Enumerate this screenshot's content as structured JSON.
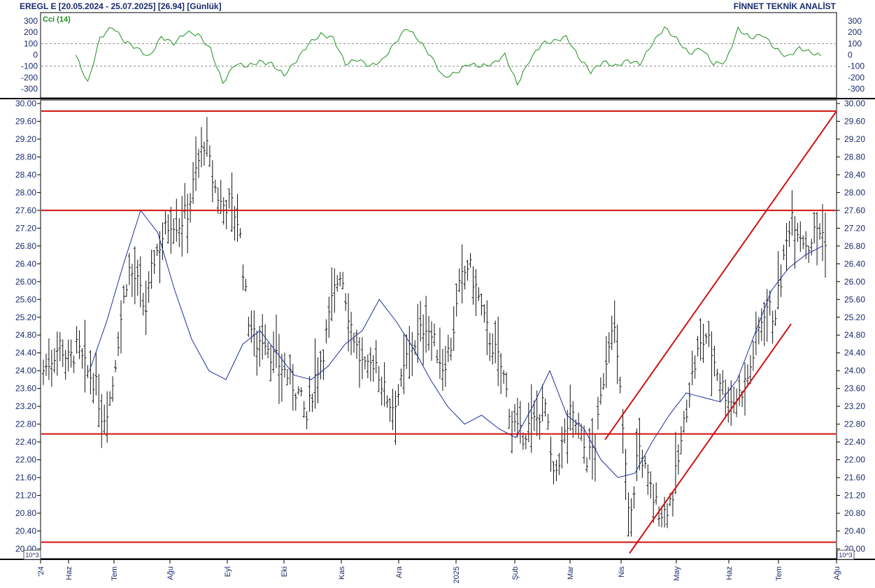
{
  "header": {
    "left": "EREGL E  [20.05.2024 - 25.07.2025]  [26.94]  [Günlük]",
    "right": "FİNNET TEKNİK ANALİST"
  },
  "indicator": {
    "label": "Cci (14)",
    "ticks": [
      "300",
      "200",
      "100",
      "0",
      "-100",
      "-200",
      "-300"
    ],
    "tick_values": [
      300,
      200,
      100,
      0,
      -100,
      -200,
      -300
    ],
    "color": "#1e8f1e"
  },
  "scale_label": "10^3",
  "chart_data": {
    "type": "ohlc",
    "ylim": [
      20.0,
      30.0
    ],
    "y_ticks": [
      "30.00",
      "29.60",
      "29.20",
      "28.80",
      "28.40",
      "28.00",
      "27.60",
      "27.20",
      "26.80",
      "26.40",
      "26.00",
      "25.60",
      "25.20",
      "24.80",
      "24.40",
      "24.00",
      "23.60",
      "23.20",
      "22.80",
      "22.40",
      "22.00",
      "21.60",
      "21.20",
      "20.80",
      "20.40",
      "20.00"
    ],
    "x_ticks": [
      "'24",
      "Haz",
      "Tem",
      "Ağu",
      "Eyl",
      "Eki",
      "Kas",
      "Ara",
      "2025",
      "Şub",
      "Mar",
      "Nis",
      "May",
      "Haz",
      "Tem",
      "Ağu"
    ],
    "close_path": [
      24.0,
      24.3,
      24.6,
      24.2,
      24.5,
      24.0,
      23.8,
      22.9,
      23.5,
      25.0,
      26.3,
      26.0,
      25.3,
      26.5,
      27.0,
      27.4,
      27.3,
      27.6,
      28.5,
      29.2,
      28.2,
      27.7,
      27.8,
      27.3,
      25.3,
      24.6,
      24.8,
      24.3,
      24.1,
      23.8,
      23.5,
      22.9,
      23.9,
      24.5,
      25.6,
      26.3,
      25.2,
      24.4,
      23.9,
      24.3,
      23.6,
      23.2,
      23.6,
      24.5,
      24.7,
      25.1,
      24.6,
      24.1,
      24.6,
      25.9,
      26.4,
      25.8,
      25.0,
      24.5,
      24.0,
      23.0,
      22.5,
      22.7,
      22.9,
      23.3,
      21.5,
      22.3,
      23.0,
      22.7,
      22.0,
      22.4,
      24.0,
      25.3,
      23.2,
      20.4,
      22.4,
      21.6,
      21.0,
      20.8,
      21.2,
      22.3,
      23.6,
      24.4,
      24.8,
      24.2,
      23.6,
      23.3,
      23.5,
      23.9,
      24.8,
      25.5,
      25.2,
      26.3,
      27.6,
      27.1,
      26.8,
      27.2,
      27.0
    ],
    "ma_path": [
      24.0,
      25.1,
      26.4,
      27.6,
      27.1,
      25.8,
      24.7,
      24.0,
      23.8,
      24.6,
      24.9,
      24.4,
      23.9,
      23.8,
      24.1,
      24.6,
      24.9,
      25.6,
      25.1,
      24.5,
      23.8,
      23.2,
      22.8,
      23.0,
      22.7,
      22.5,
      23.2,
      24.0,
      23.0,
      22.7,
      22.0,
      21.6,
      21.7,
      22.4,
      23.0,
      23.5,
      23.4,
      23.3,
      23.8,
      24.8,
      25.8,
      26.3,
      26.6,
      26.8
    ],
    "ma_color": "#1f2fa0",
    "bar_color": "#111111",
    "levels": [
      {
        "name": "top",
        "value": 29.83
      },
      {
        "name": "resistance",
        "value": 27.6
      },
      {
        "name": "support",
        "value": 22.58
      },
      {
        "name": "bottom",
        "value": 20.15
      }
    ],
    "channel": {
      "upper": {
        "from": [
          22.45,
          "Mar-26"
        ],
        "to": [
          29.83,
          "Jul-29"
        ]
      },
      "lower": {
        "from": [
          19.9,
          "Apr-03"
        ],
        "to": [
          25.05,
          "Jul-15"
        ]
      }
    },
    "line_color": "#d01010",
    "cci_path": [
      0,
      -250,
      150,
      250,
      120,
      60,
      -20,
      160,
      100,
      200,
      180,
      50,
      -250,
      -80,
      -100,
      -60,
      -80,
      -180,
      -50,
      100,
      180,
      150,
      -80,
      -40,
      -100,
      -50,
      100,
      240,
      130,
      -20,
      -200,
      -160,
      -80,
      -100,
      -80,
      0,
      -260,
      -50,
      100,
      120,
      160,
      -20,
      -150,
      -60,
      -100,
      -50,
      -80,
      100,
      240,
      140,
      10,
      60,
      -80,
      -60,
      230,
      150,
      180,
      60,
      -20,
      60,
      20,
      -20
    ]
  }
}
